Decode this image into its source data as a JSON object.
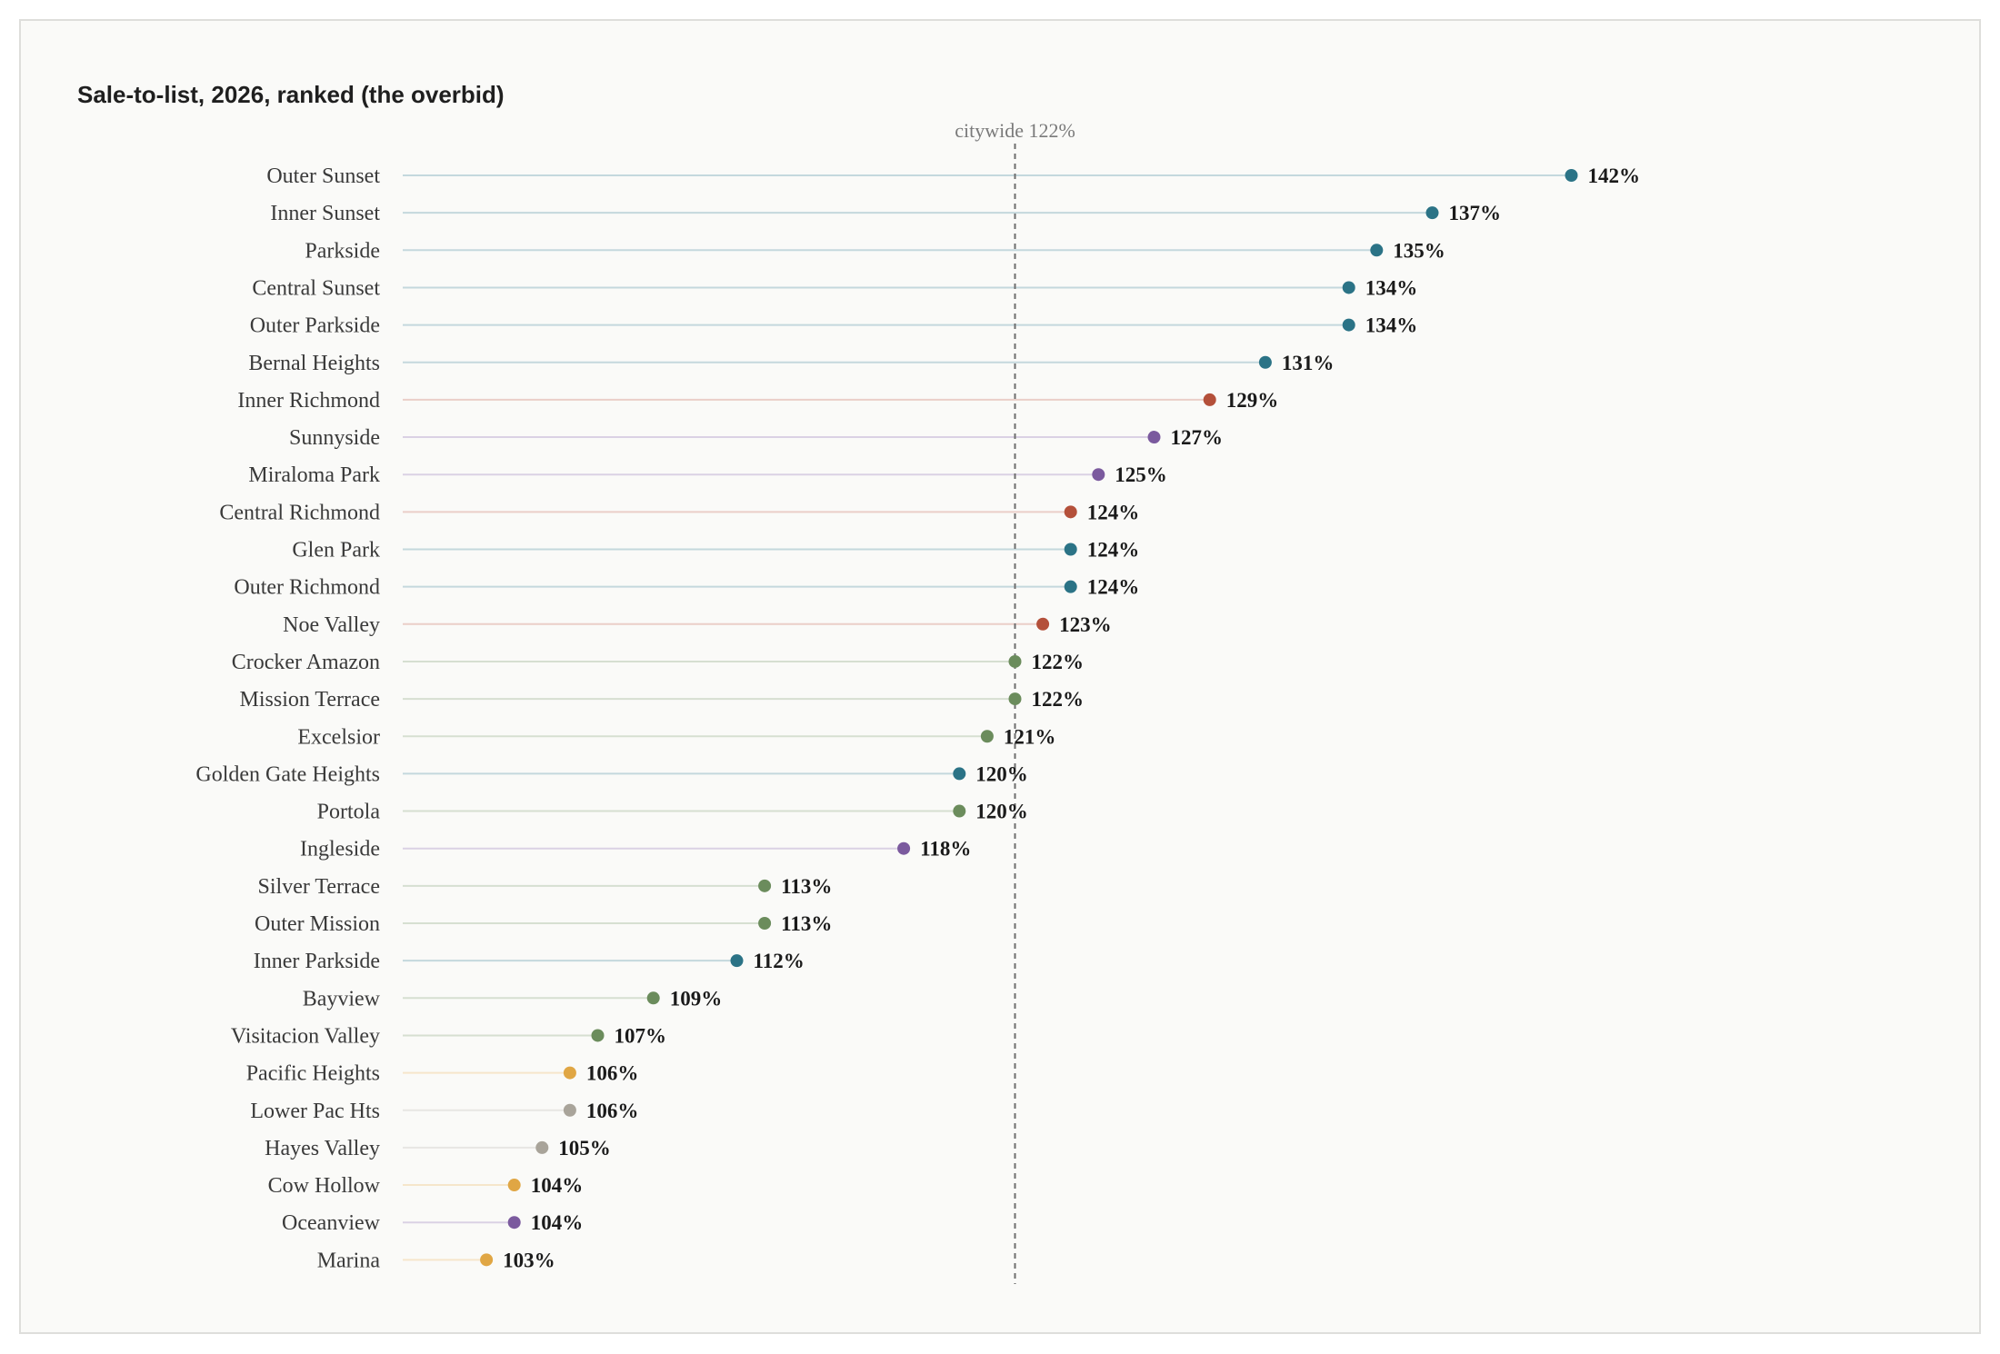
{
  "chart_data": {
    "type": "lollipop",
    "title": "Sale-to-list, 2026, ranked (the overbid)",
    "value_suffix": "%",
    "xlim": [
      100,
      143
    ],
    "reference_line": {
      "value": 122,
      "label": "citywide 122%"
    },
    "colors": {
      "teal": "#2b7386",
      "rust": "#b4503a",
      "purple": "#7b5a9e",
      "green": "#6b8c5c",
      "gold": "#e0a644",
      "gray": "#a9a49a"
    },
    "categories": [
      "Outer Sunset",
      "Inner Sunset",
      "Parkside",
      "Central Sunset",
      "Outer Parkside",
      "Bernal Heights",
      "Inner Richmond",
      "Sunnyside",
      "Miraloma Park",
      "Central Richmond",
      "Glen Park",
      "Outer Richmond",
      "Noe Valley",
      "Crocker Amazon",
      "Mission Terrace",
      "Excelsior",
      "Golden Gate Heights",
      "Portola",
      "Ingleside",
      "Silver Terrace",
      "Outer Mission",
      "Inner Parkside",
      "Bayview",
      "Visitacion Valley",
      "Pacific Heights",
      "Lower Pac Hts",
      "Hayes Valley",
      "Cow Hollow",
      "Oceanview",
      "Marina"
    ],
    "values": [
      142,
      137,
      135,
      134,
      134,
      131,
      129,
      127,
      125,
      124,
      124,
      124,
      123,
      122,
      122,
      121,
      120,
      120,
      118,
      113,
      113,
      112,
      109,
      107,
      106,
      106,
      105,
      104,
      104,
      103
    ],
    "color_groups": [
      "teal",
      "teal",
      "teal",
      "teal",
      "teal",
      "teal",
      "rust",
      "purple",
      "purple",
      "rust",
      "teal",
      "teal",
      "rust",
      "green",
      "green",
      "green",
      "teal",
      "green",
      "purple",
      "green",
      "green",
      "teal",
      "green",
      "green",
      "gold",
      "gray",
      "gray",
      "gold",
      "purple",
      "gold"
    ]
  }
}
